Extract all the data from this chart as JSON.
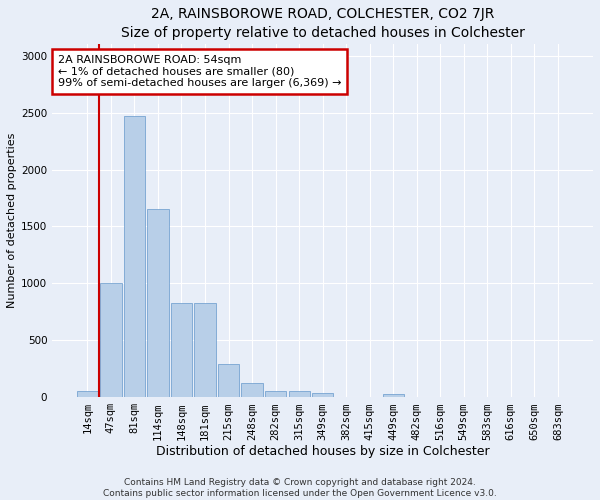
{
  "title": "2A, RAINSBOROWE ROAD, COLCHESTER, CO2 7JR",
  "subtitle": "Size of property relative to detached houses in Colchester",
  "xlabel": "Distribution of detached houses by size in Colchester",
  "ylabel": "Number of detached properties",
  "bar_labels": [
    "14sqm",
    "47sqm",
    "81sqm",
    "114sqm",
    "148sqm",
    "181sqm",
    "215sqm",
    "248sqm",
    "282sqm",
    "315sqm",
    "349sqm",
    "382sqm",
    "415sqm",
    "449sqm",
    "482sqm",
    "516sqm",
    "549sqm",
    "583sqm",
    "616sqm",
    "650sqm",
    "683sqm"
  ],
  "bar_values": [
    50,
    1000,
    2470,
    1650,
    830,
    830,
    290,
    125,
    55,
    55,
    35,
    0,
    0,
    30,
    0,
    0,
    0,
    0,
    0,
    0,
    0
  ],
  "bar_color": "#b8cfe8",
  "bar_edge_color": "#6699cc",
  "property_line_label": "2A RAINSBOROWE ROAD: 54sqm",
  "annotation_line1": "← 1% of detached houses are smaller (80)",
  "annotation_line2": "99% of semi-detached houses are larger (6,369) →",
  "annotation_box_color": "#ffffff",
  "annotation_box_edge": "#cc0000",
  "vline_color": "#cc0000",
  "vline_x": 0.5,
  "ylim": [
    0,
    3100
  ],
  "yticks": [
    0,
    500,
    1000,
    1500,
    2000,
    2500,
    3000
  ],
  "footer_line1": "Contains HM Land Registry data © Crown copyright and database right 2024.",
  "footer_line2": "Contains public sector information licensed under the Open Government Licence v3.0.",
  "bg_color": "#e8eef8",
  "plot_bg_color": "#e8eef8",
  "title_fontsize": 10,
  "subtitle_fontsize": 9,
  "annotation_fontsize": 8,
  "ylabel_fontsize": 8,
  "xlabel_fontsize": 9,
  "tick_fontsize": 7.5,
  "footer_fontsize": 6.5
}
